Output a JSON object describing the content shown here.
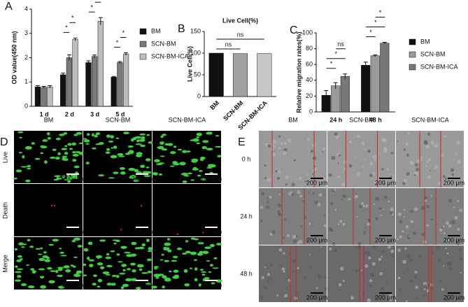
{
  "chart_data": [
    {
      "type": "bar",
      "panel": "A",
      "ylabel": "OD value(450 nm)",
      "categories": [
        "1 d",
        "2 d",
        "3 d",
        "5 d"
      ],
      "series": [
        {
          "name": "BM",
          "color": "#111111",
          "values": [
            0.8,
            1.3,
            1.8,
            1.2
          ],
          "errors": [
            0.05,
            0.07,
            0.07,
            0.03
          ]
        },
        {
          "name": "SCN-BM",
          "color": "#7a7a7a",
          "values": [
            0.78,
            2.0,
            2.05,
            1.8
          ],
          "errors": [
            0.04,
            0.12,
            0.06,
            0.04
          ]
        },
        {
          "name": "SCN-BM-ICA",
          "color": "#bdbdbd",
          "values": [
            0.8,
            2.75,
            3.5,
            2.15
          ],
          "errors": [
            0.05,
            0.06,
            0.15,
            0.05
          ]
        }
      ],
      "ylim": [
        0,
        4
      ],
      "yticks": [
        0,
        1,
        2,
        3,
        4
      ],
      "legend": "right",
      "annotations": [
        [],
        [
          "*",
          "*"
        ],
        [
          "*",
          "*"
        ],
        [
          "*",
          "*"
        ]
      ]
    },
    {
      "type": "bar",
      "panel": "B",
      "title": "Live Cell(%)",
      "ylabel": "Live Cell(%)",
      "categories": [
        "BM",
        "SCN-BM",
        "SCN-BM-ICA"
      ],
      "values": [
        100,
        99,
        99
      ],
      "colors": [
        "#111111",
        "#a0a0a0",
        "#c8c8c8"
      ],
      "ylim": [
        0,
        150
      ],
      "yticks": [
        0,
        50,
        100,
        150
      ],
      "annotations": [
        "ns",
        "ns"
      ]
    },
    {
      "type": "bar",
      "panel": "C",
      "ylabel": "Relative migration rates(%)",
      "categories": [
        "24 h",
        "48 h"
      ],
      "series": [
        {
          "name": "BM",
          "color": "#111111",
          "values": [
            21,
            59
          ],
          "errors": [
            6,
            4
          ]
        },
        {
          "name": "SCN-BM",
          "color": "#9a9a9a",
          "values": [
            33,
            71
          ],
          "errors": [
            4,
            1
          ]
        },
        {
          "name": "SCN-BM-ICA",
          "color": "#777777",
          "values": [
            45,
            87
          ],
          "errors": [
            3,
            1
          ]
        }
      ],
      "ylim": [
        0,
        100
      ],
      "yticks": [
        0,
        20,
        40,
        60,
        80,
        100
      ],
      "legend": "right",
      "annotations": [
        [
          "*",
          "*",
          "ns"
        ],
        [
          "*",
          "*",
          "*"
        ]
      ]
    }
  ],
  "image_panels": [
    {
      "panel": "D",
      "columns": [
        "BM",
        "SCN-BM",
        "SCN-BM-ICA"
      ],
      "rows": [
        "Live",
        "Death",
        "Merge"
      ],
      "scale_bar": "200 μm"
    },
    {
      "panel": "E",
      "columns": [
        "BM",
        "SCN-BM",
        "SCN-BM-ICA"
      ],
      "rows": [
        "0 h",
        "24 h",
        "48 h"
      ],
      "scale_bar": "200 μm"
    }
  ]
}
